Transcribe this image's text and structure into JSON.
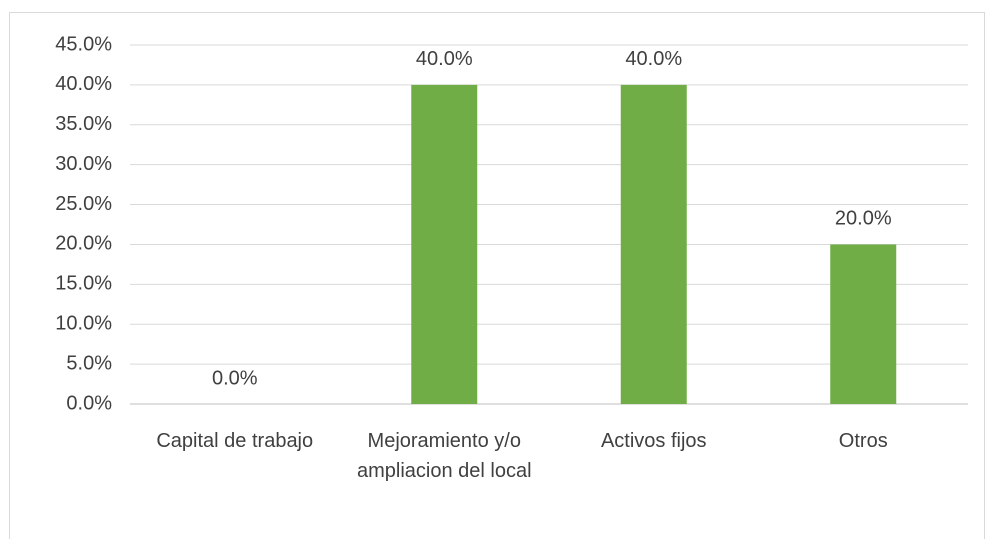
{
  "chart_data": {
    "type": "bar",
    "categories": [
      "Capital de trabajo",
      "Mejoramiento y/o ampliacion del local",
      "Activos fijos",
      "Otros"
    ],
    "values": [
      0,
      40,
      40,
      20
    ],
    "value_labels": [
      "0.0%",
      "40.0%",
      "40.0%",
      "20.0%"
    ],
    "color": "#70ad47",
    "ylim": [
      0,
      45
    ],
    "yticks": [
      {
        "value": 0,
        "label": "0.0%"
      },
      {
        "value": 5,
        "label": "5.0%"
      },
      {
        "value": 10,
        "label": "10.0%"
      },
      {
        "value": 15,
        "label": "15.0%"
      },
      {
        "value": 20,
        "label": "20.0%"
      },
      {
        "value": 25,
        "label": "25.0%"
      },
      {
        "value": 30,
        "label": "30.0%"
      },
      {
        "value": 35,
        "label": "35.0%"
      },
      {
        "value": 40,
        "label": "40.0%"
      },
      {
        "value": 45,
        "label": "45.0%"
      }
    ],
    "grid": true
  }
}
